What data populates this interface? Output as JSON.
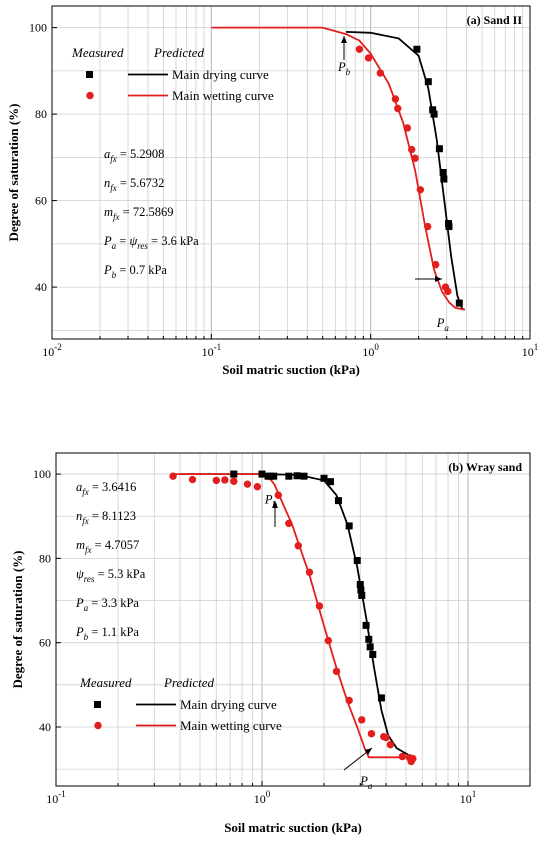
{
  "chart_data": [
    {
      "type": "scatter",
      "panel_label": "(a) Sand II",
      "xlabel": "Soil matric suction (kPa)",
      "ylabel": "Degree of saturation (%)",
      "x_scale": "log",
      "xlim": [
        0.01,
        10
      ],
      "ylim": [
        28,
        105
      ],
      "x_ticks": [
        {
          "base": "10",
          "exp": "-2"
        },
        {
          "base": "10",
          "exp": "-1"
        },
        {
          "base": "10",
          "exp": "0"
        },
        {
          "base": "10",
          "exp": "1"
        }
      ],
      "y_ticks": [
        "40",
        "60",
        "80",
        "100"
      ],
      "grid": true,
      "legend": {
        "position": "top-left",
        "measured_header": "Measured",
        "predicted_header": "Predicted",
        "entries": [
          "Main drying curve",
          "Main wetting curve"
        ]
      },
      "params": [
        {
          "sym": "a",
          "sub": "fx",
          "val": " = 5.2908"
        },
        {
          "sym": "n",
          "sub": "fx",
          "val": " = 5.6732"
        },
        {
          "sym": "m",
          "sub": "fx",
          "val": " = 72.5869"
        },
        {
          "sym": "P",
          "sub": "a",
          "sym2": "ψ",
          "sub2": "res",
          "val": " = 3.6 kPa"
        },
        {
          "sym": "P",
          "sub": "b",
          "val": " = 0.7 kPa"
        }
      ],
      "annotations": [
        {
          "sym": "P",
          "sub": "b",
          "x": 0.7,
          "y": 90
        },
        {
          "sym": "P",
          "sub": "a",
          "x": 3.0,
          "y": 34
        }
      ],
      "series": [
        {
          "name": "Main drying curve",
          "color": "#000000",
          "marker": "square",
          "points": [
            [
              1.95,
              95.0
            ],
            [
              2.3,
              87.5
            ],
            [
              2.45,
              81.0
            ],
            [
              2.5,
              80.0
            ],
            [
              2.7,
              72.0
            ],
            [
              2.85,
              66.5
            ],
            [
              2.88,
              65.0
            ],
            [
              3.08,
              54.7
            ],
            [
              3.1,
              54.0
            ],
            [
              3.6,
              36.3
            ]
          ],
          "curve": [
            [
              0.7,
              99.0
            ],
            [
              1.0,
              98.8
            ],
            [
              1.5,
              97.5
            ],
            [
              2.0,
              93.5
            ],
            [
              2.3,
              86.0
            ],
            [
              2.6,
              74.0
            ],
            [
              2.9,
              60.0
            ],
            [
              3.2,
              47.0
            ],
            [
              3.5,
              38.0
            ],
            [
              3.75,
              35.0
            ],
            [
              3.9,
              34.8
            ]
          ]
        },
        {
          "name": "Main wetting curve",
          "color": "#e21e1e",
          "marker": "circle",
          "points": [
            [
              0.85,
              95.0
            ],
            [
              0.97,
              93.0
            ],
            [
              1.15,
              89.5
            ],
            [
              1.43,
              83.5
            ],
            [
              1.48,
              81.3
            ],
            [
              1.7,
              76.8
            ],
            [
              1.81,
              71.8
            ],
            [
              1.9,
              69.8
            ],
            [
              2.05,
              62.5
            ],
            [
              2.28,
              54.0
            ],
            [
              2.56,
              45.2
            ],
            [
              2.95,
              40.0
            ],
            [
              3.05,
              39.0
            ]
          ],
          "curve": [
            [
              0.1,
              100.0
            ],
            [
              0.5,
              100.0
            ],
            [
              0.7,
              98.5
            ],
            [
              0.85,
              97.0
            ],
            [
              1.0,
              94.0
            ],
            [
              1.3,
              87.0
            ],
            [
              1.6,
              78.0
            ],
            [
              1.9,
              67.0
            ],
            [
              2.2,
              54.0
            ],
            [
              2.5,
              44.0
            ],
            [
              2.8,
              39.0
            ],
            [
              3.1,
              36.5
            ],
            [
              3.4,
              35.2
            ],
            [
              3.9,
              34.8
            ]
          ]
        }
      ]
    },
    {
      "type": "scatter",
      "panel_label": "(b) Wray sand",
      "xlabel": "Soil matric suction (kPa)",
      "ylabel": "Degree of saturation (%)",
      "x_scale": "log",
      "xlim": [
        0.1,
        20
      ],
      "ylim": [
        26,
        105
      ],
      "x_ticks": [
        {
          "base": "10",
          "exp": "-1"
        },
        {
          "base": "10",
          "exp": "0"
        },
        {
          "base": "10",
          "exp": "1"
        }
      ],
      "y_ticks": [
        "40",
        "60",
        "80",
        "100"
      ],
      "grid": true,
      "legend": {
        "position": "bottom-left",
        "measured_header": "Measured",
        "predicted_header": "Predicted",
        "entries": [
          "Main drying curve",
          "Main wetting curve"
        ]
      },
      "params": [
        {
          "sym": "a",
          "sub": "fx",
          "val": " = 3.6416"
        },
        {
          "sym": "n",
          "sub": "fx",
          "val": " = 8.1123"
        },
        {
          "sym": "m",
          "sub": "fx",
          "val": " = 4.7057"
        },
        {
          "sym": "ψ",
          "sub": "res",
          "val": " = 5.3 kPa"
        },
        {
          "sym": "P",
          "sub": "a",
          "val": " = 3.3 kPa"
        },
        {
          "sym": "P",
          "sub": "b",
          "val": " = 1.1 kPa"
        }
      ],
      "annotations": [
        {
          "sym": "P",
          "sub": "b",
          "x": 1.08,
          "y": 93
        },
        {
          "sym": "P",
          "sub": "a",
          "x": 3.0,
          "y": 30
        }
      ],
      "series": [
        {
          "name": "Main drying curve",
          "color": "#000000",
          "marker": "square",
          "points": [
            [
              0.73,
              100.0
            ],
            [
              1.0,
              100.0
            ],
            [
              1.07,
              99.5
            ],
            [
              1.1,
              99.5
            ],
            [
              1.14,
              99.5
            ],
            [
              1.35,
              99.5
            ],
            [
              1.48,
              99.6
            ],
            [
              1.6,
              99.5
            ],
            [
              2.0,
              99.0
            ],
            [
              2.15,
              98.2
            ],
            [
              2.35,
              93.7
            ],
            [
              2.65,
              87.7
            ],
            [
              2.9,
              79.5
            ],
            [
              3.0,
              73.8
            ],
            [
              3.02,
              72.5
            ],
            [
              3.05,
              71.2
            ],
            [
              3.2,
              64.1
            ],
            [
              3.3,
              60.8
            ],
            [
              3.35,
              59.0
            ],
            [
              3.45,
              57.2
            ],
            [
              3.8,
              46.9
            ]
          ],
          "curve": [
            [
              0.4,
              100.0
            ],
            [
              1.0,
              100.0
            ],
            [
              1.5,
              99.8
            ],
            [
              2.0,
              98.5
            ],
            [
              2.3,
              95.0
            ],
            [
              2.6,
              88.0
            ],
            [
              2.9,
              78.0
            ],
            [
              3.2,
              66.0
            ],
            [
              3.5,
              54.0
            ],
            [
              3.8,
              44.0
            ],
            [
              4.1,
              38.0
            ],
            [
              4.5,
              35.0
            ],
            [
              5.3,
              33.0
            ]
          ]
        },
        {
          "name": "Main wetting curve",
          "color": "#e21e1e",
          "marker": "circle",
          "points": [
            [
              0.37,
              99.5
            ],
            [
              0.46,
              98.7
            ],
            [
              0.6,
              98.5
            ],
            [
              0.66,
              98.6
            ],
            [
              0.73,
              98.3
            ],
            [
              0.85,
              97.6
            ],
            [
              0.95,
              97.0
            ],
            [
              1.2,
              95.0
            ],
            [
              1.35,
              88.3
            ],
            [
              1.5,
              83.0
            ],
            [
              1.7,
              76.7
            ],
            [
              1.9,
              68.7
            ],
            [
              2.1,
              60.5
            ],
            [
              2.3,
              53.2
            ],
            [
              2.65,
              46.3
            ],
            [
              3.05,
              41.7
            ],
            [
              3.4,
              38.4
            ],
            [
              3.9,
              37.7
            ],
            [
              4.0,
              37.5
            ],
            [
              4.2,
              35.8
            ],
            [
              4.8,
              33.0
            ],
            [
              5.2,
              32.7
            ],
            [
              5.4,
              32.5
            ],
            [
              5.3,
              31.8
            ]
          ],
          "curve": [
            [
              0.37,
              100.0
            ],
            [
              1.05,
              100.0
            ],
            [
              1.15,
              97.5
            ],
            [
              1.4,
              88.0
            ],
            [
              1.7,
              76.0
            ],
            [
              2.0,
              64.0
            ],
            [
              2.3,
              54.0
            ],
            [
              2.6,
              46.0
            ],
            [
              2.9,
              40.0
            ],
            [
              3.15,
              35.0
            ],
            [
              3.3,
              32.8
            ],
            [
              5.3,
              32.8
            ]
          ]
        }
      ]
    }
  ]
}
